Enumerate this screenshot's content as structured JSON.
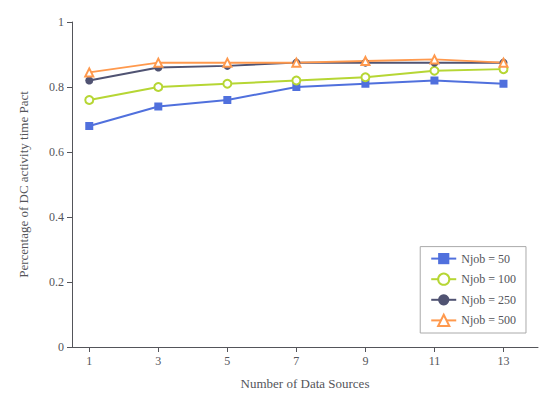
{
  "chart_data": {
    "type": "line",
    "x": [
      1,
      3,
      5,
      7,
      9,
      11,
      13
    ],
    "series": [
      {
        "name": "Njob = 50",
        "values": [
          0.68,
          0.74,
          0.76,
          0.8,
          0.81,
          0.82,
          0.81
        ],
        "marker": "square"
      },
      {
        "name": "Njob = 100",
        "values": [
          0.76,
          0.8,
          0.81,
          0.82,
          0.83,
          0.85,
          0.855
        ],
        "marker": "circle-open"
      },
      {
        "name": "Njob = 250",
        "values": [
          0.82,
          0.86,
          0.865,
          0.875,
          0.875,
          0.875,
          0.875
        ],
        "marker": "circle"
      },
      {
        "name": "Njob = 500",
        "values": [
          0.845,
          0.875,
          0.875,
          0.875,
          0.88,
          0.885,
          0.875
        ],
        "marker": "triangle-open"
      }
    ],
    "xlabel": "Number of Data Sources",
    "ylabel": "Percentage of DC activity time Pact",
    "xlim": [
      0.5,
      14
    ],
    "ylim": [
      0,
      1.0
    ],
    "xticks": [
      1,
      3,
      5,
      7,
      9,
      11,
      13
    ],
    "yticks": [
      0,
      0.2,
      0.4,
      0.6,
      0.8,
      1.0
    ],
    "grid": false,
    "legend": "lower right"
  }
}
